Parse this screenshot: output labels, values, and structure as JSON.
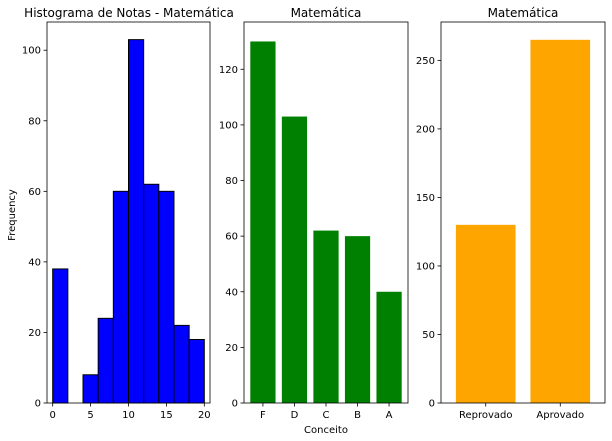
{
  "chart_data": [
    {
      "type": "bar",
      "title": "Histograma de Notas - Matemática",
      "xlabel": "",
      "ylabel": "Frequency",
      "xlim": [
        -0.75,
        20.75
      ],
      "ylim": [
        0,
        108
      ],
      "xticks": [
        0,
        5,
        10,
        15,
        20
      ],
      "xtick_labels": [
        "0",
        "5",
        "10",
        "15",
        "20"
      ],
      "yticks": [
        0,
        20,
        40,
        60,
        80,
        100
      ],
      "ytick_labels": [
        "0",
        "20",
        "40",
        "60",
        "80",
        "100"
      ],
      "bin_edges": [
        0,
        2,
        4,
        6,
        8,
        10,
        12,
        14,
        16,
        18,
        20
      ],
      "values": [
        38,
        0,
        8,
        24,
        60,
        103,
        62,
        60,
        22,
        18
      ],
      "color": "#0000ff",
      "edgecolor": "#000000"
    },
    {
      "type": "bar",
      "title": "Matemática",
      "xlabel": "Conceito",
      "ylabel": "",
      "categories": [
        "F",
        "D",
        "C",
        "B",
        "A"
      ],
      "values": [
        130,
        103,
        62,
        60,
        40
      ],
      "ylim": [
        0,
        137
      ],
      "yticks": [
        0,
        20,
        40,
        60,
        80,
        100,
        120
      ],
      "ytick_labels": [
        "0",
        "20",
        "40",
        "60",
        "80",
        "100",
        "120"
      ],
      "color": "#008000"
    },
    {
      "type": "bar",
      "title": "Matemática",
      "xlabel": "",
      "ylabel": "",
      "categories": [
        "Reprovado",
        "Aprovado"
      ],
      "values": [
        130,
        265
      ],
      "ylim": [
        0,
        278
      ],
      "yticks": [
        0,
        50,
        100,
        150,
        200,
        250
      ],
      "ytick_labels": [
        "0",
        "50",
        "100",
        "150",
        "200",
        "250"
      ],
      "color": "#ffa500"
    }
  ]
}
